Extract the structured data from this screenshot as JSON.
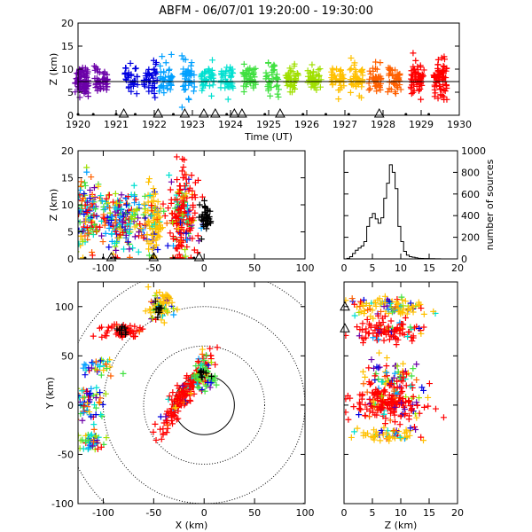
{
  "title": "ABFM - 06/07/01 19:20:00 - 19:30:00",
  "colors": {
    "background": "#ffffff",
    "axes": "#000000",
    "time_color_scale": [
      "#6b00a8",
      "#0000e0",
      "#00a0ff",
      "#00e0d0",
      "#40e040",
      "#a0e000",
      "#ffc000",
      "#ff6000",
      "#ff0000"
    ],
    "station": "#000000"
  },
  "chart_data": [
    {
      "id": "time-height",
      "type": "scatter",
      "xlabel": "Time (UT)",
      "ylabel": "Z (km)",
      "xlim": [
        1920,
        1930
      ],
      "ylim": [
        0,
        20
      ],
      "xtick_labels": [
        "1920",
        "1921",
        "1922",
        "1923",
        "1924",
        "1925",
        "1926",
        "1927",
        "1928",
        "1929",
        "1930"
      ],
      "yticks": [
        0,
        5,
        10,
        15,
        20
      ],
      "reference_line_z": 7.3,
      "clusters": [
        {
          "t": 1920.1,
          "z": 7.5,
          "spread": 2.5,
          "n": 80
        },
        {
          "t": 1920.6,
          "z": 7.5,
          "spread": 2.5,
          "n": 40
        },
        {
          "t": 1921.4,
          "z": 8.0,
          "spread": 2.5,
          "n": 30
        },
        {
          "t": 1921.9,
          "z": 8.0,
          "spread": 3.0,
          "n": 40
        },
        {
          "t": 1922.3,
          "z": 8.0,
          "spread": 3.0,
          "n": 40
        },
        {
          "t": 1922.9,
          "z": 8.0,
          "spread": 3.0,
          "n": 40
        },
        {
          "t": 1923.4,
          "z": 7.8,
          "spread": 2.5,
          "n": 40
        },
        {
          "t": 1923.9,
          "z": 7.8,
          "spread": 2.5,
          "n": 40
        },
        {
          "t": 1924.5,
          "z": 7.8,
          "spread": 2.5,
          "n": 40
        },
        {
          "t": 1925.1,
          "z": 7.8,
          "spread": 2.5,
          "n": 40
        },
        {
          "t": 1925.6,
          "z": 7.8,
          "spread": 2.5,
          "n": 40
        },
        {
          "t": 1926.2,
          "z": 7.8,
          "spread": 2.5,
          "n": 40
        },
        {
          "t": 1926.8,
          "z": 7.8,
          "spread": 2.5,
          "n": 40
        },
        {
          "t": 1927.3,
          "z": 7.8,
          "spread": 2.5,
          "n": 40
        },
        {
          "t": 1927.8,
          "z": 7.8,
          "spread": 2.5,
          "n": 40
        },
        {
          "t": 1928.3,
          "z": 7.8,
          "spread": 2.5,
          "n": 40
        },
        {
          "t": 1928.9,
          "z": 7.8,
          "spread": 3.0,
          "n": 60
        },
        {
          "t": 1929.5,
          "z": 7.8,
          "spread": 3.5,
          "n": 70
        }
      ],
      "ground_triangles_t": [
        1921.2,
        1922.1,
        1922.8,
        1923.3,
        1923.6,
        1924.1,
        1924.3,
        1925.3,
        1927.9
      ],
      "ground_dots_t": [
        1920.0,
        1920.4,
        1921.0,
        1921.5,
        1922.5,
        1923.9,
        1924.9,
        1925.9,
        1926.5,
        1927.1,
        1928.6,
        1929.2
      ]
    },
    {
      "id": "x-height",
      "type": "scatter",
      "xlabel": "",
      "ylabel": "Z (km)",
      "xlim": [
        -125,
        100
      ],
      "ylim": [
        0,
        20
      ],
      "xticks": [
        -100,
        -50,
        0,
        50,
        100
      ],
      "yticks": [
        0,
        5,
        10,
        15,
        20
      ],
      "clusters": [
        {
          "x": -115,
          "z": 8,
          "sx": 8,
          "sz": 3.5,
          "n": 140
        },
        {
          "x": -90,
          "z": 7,
          "sx": 6,
          "sz": 2.5,
          "n": 60
        },
        {
          "x": -75,
          "z": 7,
          "sx": 10,
          "sz": 3.0,
          "n": 120
        },
        {
          "x": -50,
          "z": 7,
          "sx": 4,
          "sz": 3.0,
          "n": 100
        },
        {
          "x": -22,
          "z": 8,
          "sx": 7,
          "sz": 4.0,
          "n": 200
        },
        {
          "x": 2,
          "z": 7.5,
          "sx": 3,
          "sz": 1.5,
          "n": 40
        }
      ],
      "ground_triangles_x": [
        -92,
        -50,
        -5
      ],
      "ground_dots_x": [
        -118,
        -100,
        -92,
        -88,
        -52,
        -30,
        -10
      ]
    },
    {
      "id": "height-histogram",
      "type": "line",
      "ylabel": "number of sources",
      "xlim": [
        0,
        20
      ],
      "ylim": [
        0,
        1000
      ],
      "xticks": [
        0,
        5,
        10,
        15,
        20
      ],
      "yticks": [
        0,
        200,
        400,
        600,
        800,
        1000
      ],
      "bins_z": [
        0,
        0.5,
        1,
        1.5,
        2,
        2.5,
        3,
        3.5,
        4,
        4.5,
        5,
        5.5,
        6,
        6.5,
        7,
        7.5,
        8,
        8.5,
        9,
        9.5,
        10,
        10.5,
        11,
        11.5,
        12,
        12.5,
        13,
        13.5,
        14,
        15,
        16,
        17,
        18,
        19,
        20
      ],
      "counts": [
        0,
        5,
        20,
        50,
        80,
        100,
        120,
        160,
        300,
        380,
        420,
        370,
        330,
        380,
        560,
        700,
        870,
        800,
        650,
        300,
        160,
        70,
        35,
        20,
        15,
        10,
        5,
        4,
        3,
        2,
        1,
        0,
        0,
        0,
        0
      ]
    },
    {
      "id": "plan-view",
      "type": "scatter",
      "xlabel": "X (km)",
      "ylabel": "Y (km)",
      "xlim": [
        -125,
        100
      ],
      "ylim": [
        -100,
        125
      ],
      "xticks": [
        -100,
        -50,
        0,
        50,
        100
      ],
      "yticks": [
        -100,
        -50,
        0,
        50,
        100
      ],
      "range_ring_radii_km": [
        30,
        60,
        100,
        140
      ],
      "clusters": [
        {
          "x": -45,
          "y": 100,
          "sx": 7,
          "sy": 7,
          "n": 80
        },
        {
          "x": -80,
          "y": 76,
          "sx": 9,
          "sy": 4,
          "n": 60
        },
        {
          "x": -105,
          "y": 40,
          "sx": 9,
          "sy": 6,
          "n": 30
        },
        {
          "x": -115,
          "y": 5,
          "sx": 7,
          "sy": 9,
          "n": 60
        },
        {
          "x": -110,
          "y": -35,
          "sx": 8,
          "sy": 6,
          "n": 40
        },
        {
          "x": -20,
          "y": 10,
          "sx": 12,
          "sy": 14,
          "n": 200
        },
        {
          "x": 0,
          "y": 30,
          "sx": 5,
          "sy": 8,
          "n": 60
        }
      ],
      "stations": [
        {
          "x": 0,
          "y": 30
        },
        {
          "x": -80,
          "y": 76
        },
        {
          "x": -45,
          "y": 98
        }
      ]
    },
    {
      "id": "z-y",
      "type": "scatter",
      "xlabel": "Z (km)",
      "xlim": [
        0,
        20
      ],
      "ylim": [
        -100,
        125
      ],
      "xticks": [
        0,
        5,
        10,
        15,
        20
      ],
      "yticks": [
        -100,
        -50,
        0,
        50,
        100
      ],
      "clusters": [
        {
          "z": 8,
          "y": 100,
          "sz": 3.5,
          "sy": 5,
          "n": 100
        },
        {
          "z": 8,
          "y": 75,
          "sz": 3.5,
          "sy": 5,
          "n": 100
        },
        {
          "z": 8,
          "y": 30,
          "sz": 2.5,
          "sy": 8,
          "n": 60
        },
        {
          "z": 8,
          "y": 3,
          "sz": 3.0,
          "sy": 9,
          "n": 200
        },
        {
          "z": 8,
          "y": -30,
          "sz": 2.5,
          "sy": 4,
          "n": 60
        }
      ],
      "ground_triangles_y": [
        100,
        78
      ]
    }
  ]
}
